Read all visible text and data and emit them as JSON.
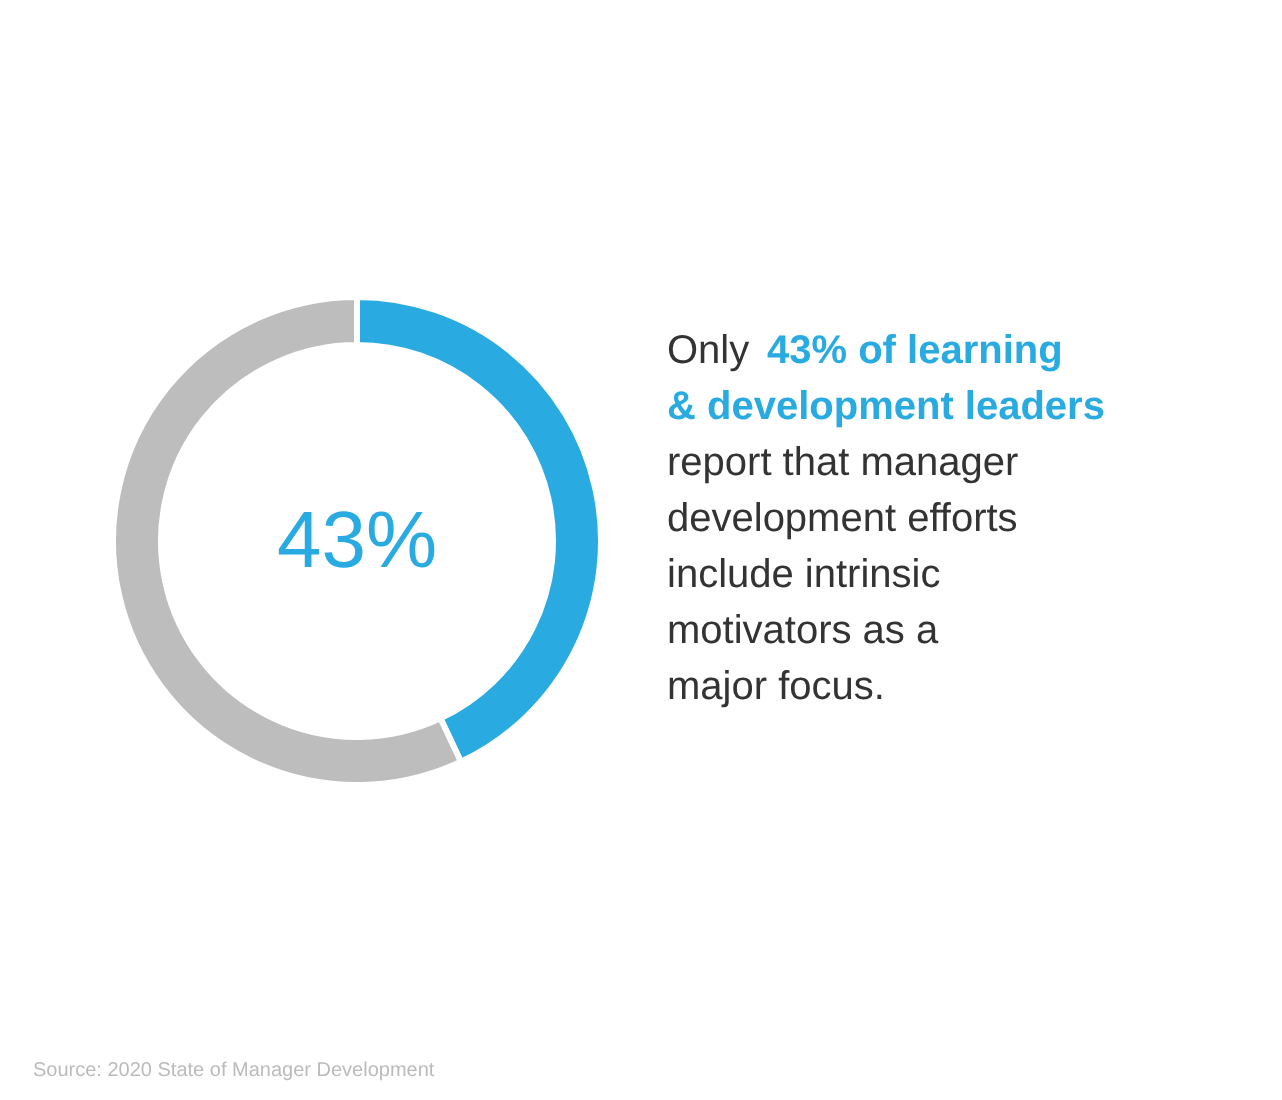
{
  "chart_data": {
    "type": "donut",
    "categories": [
      null,
      null
    ],
    "values": [
      43,
      57
    ],
    "colors": [
      "#29abe2",
      "#bdbdbd"
    ],
    "value_labels": [
      "43%",
      null
    ],
    "annotations": [
      "Only",
      "43% of learning\n& development leaders",
      "report that manager\ndevelopment efforts\ninclude intrinsic\nmotivators as a\nmajor focus.",
      "Source: 2020 State of Manager Development"
    ]
  }
}
